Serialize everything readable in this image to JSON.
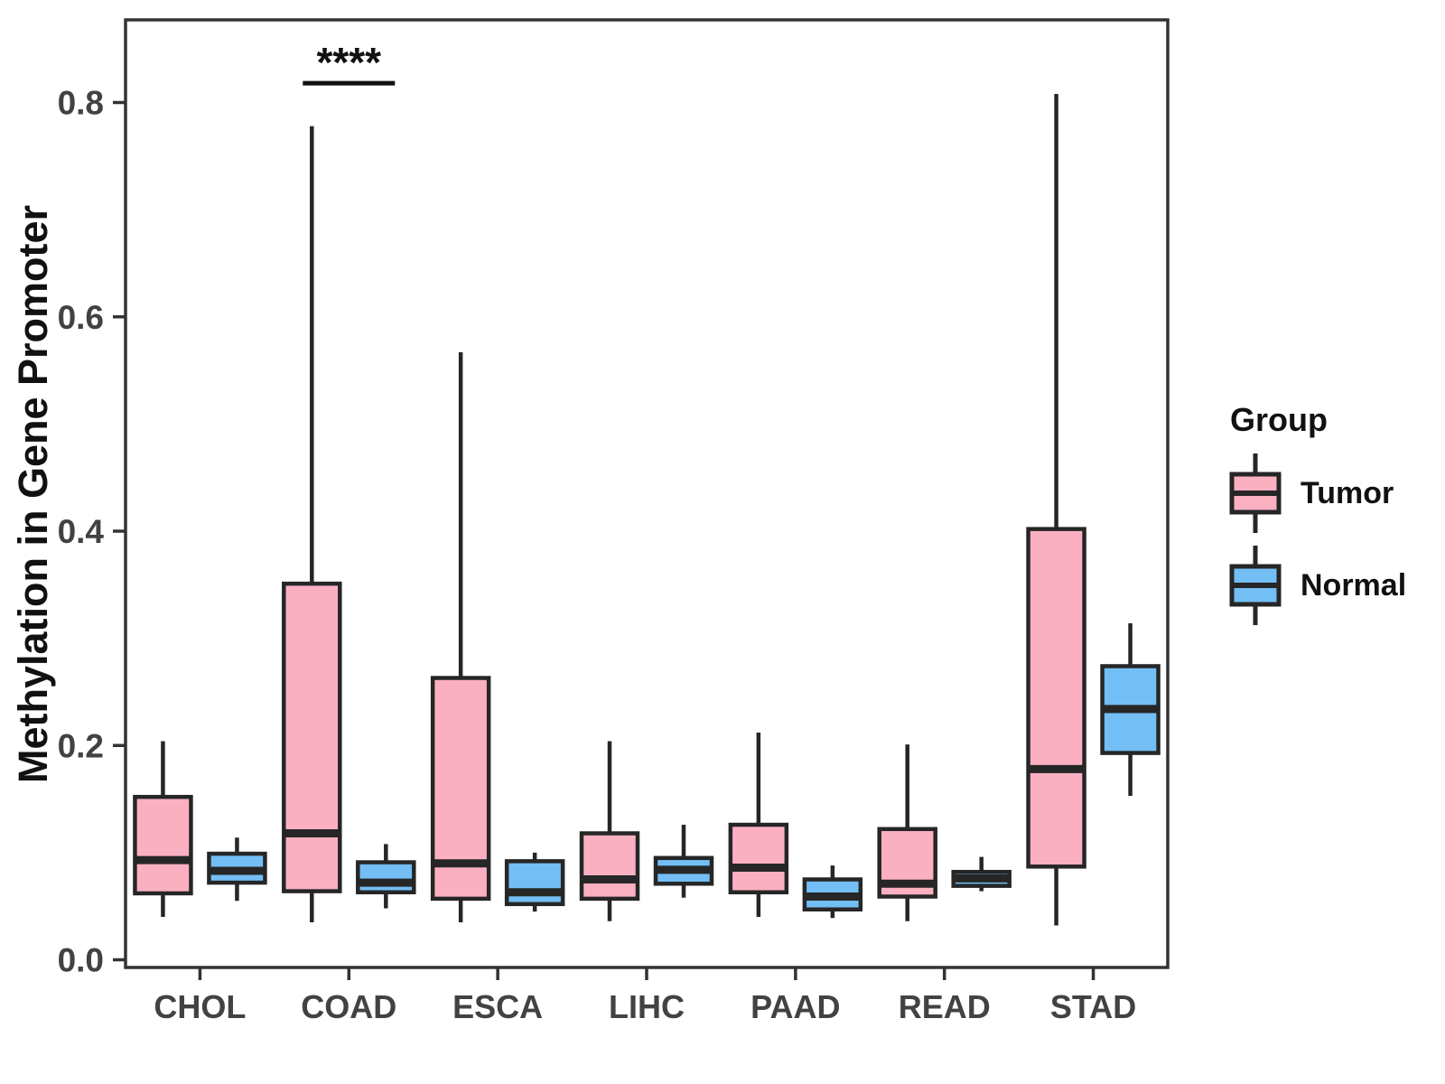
{
  "style": {
    "tumor_fill": "#FBB0C2",
    "normal_fill": "#73BEF4",
    "box_stroke": "#262626",
    "panel_border": "#333333",
    "axis_text_color": "#424242",
    "tick_color": "#333333",
    "annotation_color": "#111111"
  },
  "chart_data": {
    "type": "boxplot",
    "title": "",
    "xlabel": "",
    "ylabel": "Methylation in Gene Promoter",
    "categories": [
      "CHOL",
      "COAD",
      "ESCA",
      "LIHC",
      "PAAD",
      "READ",
      "STAD"
    ],
    "y_ticks": [
      0.0,
      0.2,
      0.4,
      0.6,
      0.8
    ],
    "y_tick_labels": [
      "0.0",
      "0.2",
      "0.4",
      "0.6",
      "0.8"
    ],
    "ylim": [
      -0.007,
      0.878
    ],
    "grid": false,
    "legend_position": "right",
    "legend_title": "Group",
    "series": [
      {
        "name": "Tumor",
        "color": "#FBB0C2",
        "values": [
          {
            "category": "CHOL",
            "low": 0.04,
            "q1": 0.062,
            "median": 0.093,
            "q3": 0.152,
            "high": 0.204
          },
          {
            "category": "COAD",
            "low": 0.035,
            "q1": 0.064,
            "median": 0.118,
            "q3": 0.351,
            "high": 0.778
          },
          {
            "category": "ESCA",
            "low": 0.035,
            "q1": 0.057,
            "median": 0.09,
            "q3": 0.263,
            "high": 0.567
          },
          {
            "category": "LIHC",
            "low": 0.036,
            "q1": 0.057,
            "median": 0.075,
            "q3": 0.118,
            "high": 0.204
          },
          {
            "category": "PAAD",
            "low": 0.04,
            "q1": 0.063,
            "median": 0.086,
            "q3": 0.126,
            "high": 0.212
          },
          {
            "category": "READ",
            "low": 0.036,
            "q1": 0.059,
            "median": 0.071,
            "q3": 0.122,
            "high": 0.201
          },
          {
            "category": "STAD",
            "low": 0.032,
            "q1": 0.087,
            "median": 0.178,
            "q3": 0.402,
            "high": 0.808
          }
        ]
      },
      {
        "name": "Normal",
        "color": "#73BEF4",
        "values": [
          {
            "category": "CHOL",
            "low": 0.055,
            "q1": 0.072,
            "median": 0.083,
            "q3": 0.099,
            "high": 0.114
          },
          {
            "category": "COAD",
            "low": 0.048,
            "q1": 0.063,
            "median": 0.072,
            "q3": 0.091,
            "high": 0.108
          },
          {
            "category": "ESCA",
            "low": 0.045,
            "q1": 0.052,
            "median": 0.063,
            "q3": 0.092,
            "high": 0.1
          },
          {
            "category": "LIHC",
            "low": 0.058,
            "q1": 0.071,
            "median": 0.084,
            "q3": 0.095,
            "high": 0.126
          },
          {
            "category": "PAAD",
            "low": 0.039,
            "q1": 0.047,
            "median": 0.059,
            "q3": 0.075,
            "high": 0.088
          },
          {
            "category": "READ",
            "low": 0.064,
            "q1": 0.069,
            "median": 0.076,
            "q3": 0.082,
            "high": 0.096
          },
          {
            "category": "STAD",
            "low": 0.153,
            "q1": 0.193,
            "median": 0.234,
            "q3": 0.274,
            "high": 0.314
          }
        ]
      }
    ],
    "annotations": [
      {
        "text": "****",
        "category": "COAD",
        "between": [
          "Tumor",
          "Normal"
        ],
        "line_y": 0.818,
        "text_y": 0.824
      }
    ]
  },
  "legend": {
    "title": "Group",
    "items": [
      {
        "label": "Tumor",
        "color": "#FBB0C2"
      },
      {
        "label": "Normal",
        "color": "#73BEF4"
      }
    ]
  }
}
